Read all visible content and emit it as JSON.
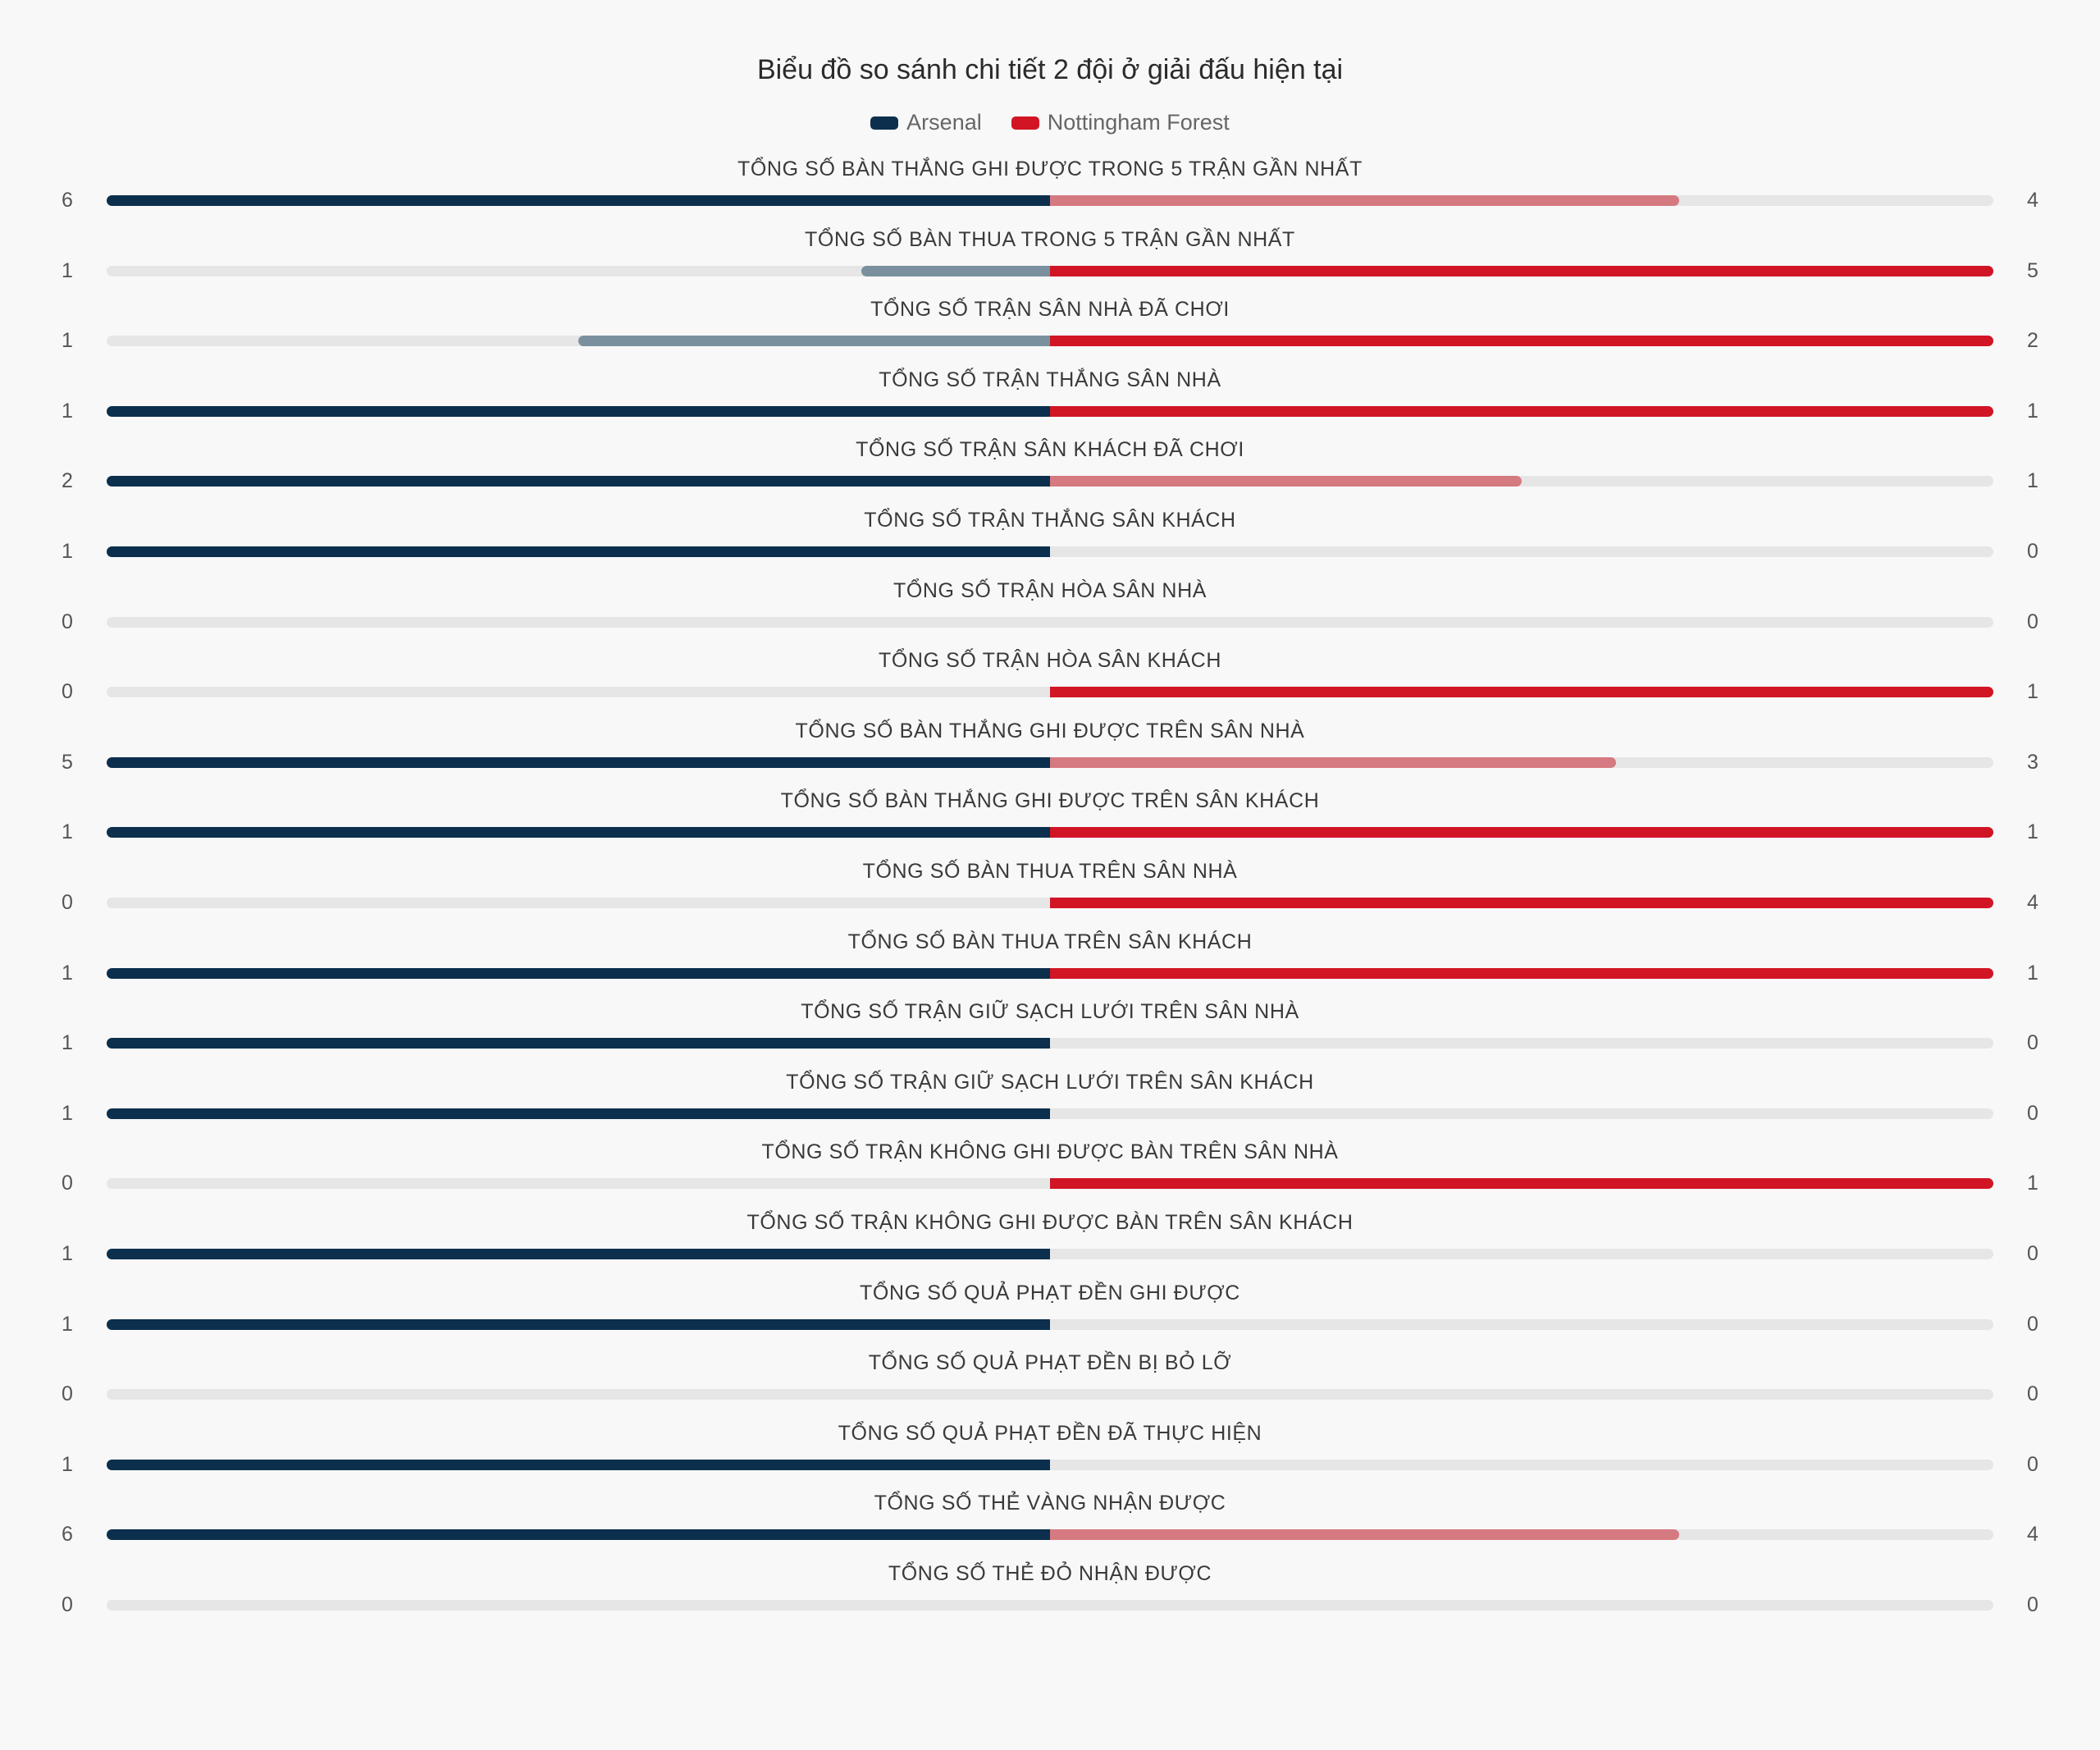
{
  "chart_data": {
    "type": "bar",
    "title": "Biểu đồ so sánh chi tiết 2 đội ở giải đấu hiện tại",
    "series": [
      {
        "name": "Arsenal",
        "color": "#0b2f4d",
        "muted_color": "#7a909e"
      },
      {
        "name": "Nottingham Forest",
        "color": "#d11525",
        "muted_color": "#d57a80"
      }
    ],
    "track_color": "#e6e6e6",
    "categories": [
      "TỔNG SỐ BÀN THẮNG GHI ĐƯỢC TRONG 5 TRẬN GẦN NHẤT",
      "TỔNG SỐ BÀN THUA TRONG 5 TRẬN GẦN NHẤT",
      "TỔNG SỐ TRẬN SÂN NHÀ ĐÃ CHƠI",
      "TỔNG SỐ TRẬN THẮNG SÂN NHÀ",
      "TỔNG SỐ TRẬN SÂN KHÁCH ĐÃ CHƠI",
      "TỔNG SỐ TRẬN THẮNG SÂN KHÁCH",
      "TỔNG SỐ TRẬN HÒA SÂN NHÀ",
      "TỔNG SỐ TRẬN HÒA SÂN KHÁCH",
      "TỔNG SỐ BÀN THẮNG GHI ĐƯỢC TRÊN SÂN NHÀ",
      "TỔNG SỐ BÀN THẮNG GHI ĐƯỢC TRÊN SÂN KHÁCH",
      "TỔNG SỐ BÀN THUA TRÊN SÂN NHÀ",
      "TỔNG SỐ BÀN THUA TRÊN SÂN KHÁCH",
      "TỔNG SỐ TRẬN GIỮ SẠCH LƯỚI TRÊN SÂN NHÀ",
      "TỔNG SỐ TRẬN GIỮ SẠCH LƯỚI TRÊN SÂN KHÁCH",
      "TỔNG SỐ TRẬN KHÔNG GHI ĐƯỢC BÀN TRÊN SÂN NHÀ",
      "TỔNG SỐ TRẬN KHÔNG GHI ĐƯỢC BÀN TRÊN SÂN KHÁCH",
      "TỔNG SỐ QUẢ PHẠT ĐỀN GHI ĐƯỢC",
      "TỔNG SỐ QUẢ PHẠT ĐỀN BỊ BỎ LỠ",
      "TỔNG SỐ QUẢ PHẠT ĐỀN ĐÃ THỰC HIỆN",
      "TỔNG SỐ THẺ VÀNG NHẬN ĐƯỢC",
      "TỔNG SỐ THẺ ĐỎ NHẬN ĐƯỢC"
    ],
    "arsenal_values": [
      6,
      1,
      1,
      1,
      2,
      1,
      0,
      0,
      5,
      1,
      0,
      1,
      1,
      1,
      0,
      1,
      1,
      0,
      1,
      6,
      0
    ],
    "forest_values": [
      4,
      5,
      2,
      1,
      1,
      0,
      0,
      1,
      3,
      1,
      4,
      1,
      0,
      0,
      1,
      0,
      0,
      0,
      0,
      4,
      0
    ],
    "legend_position": "top-center"
  }
}
